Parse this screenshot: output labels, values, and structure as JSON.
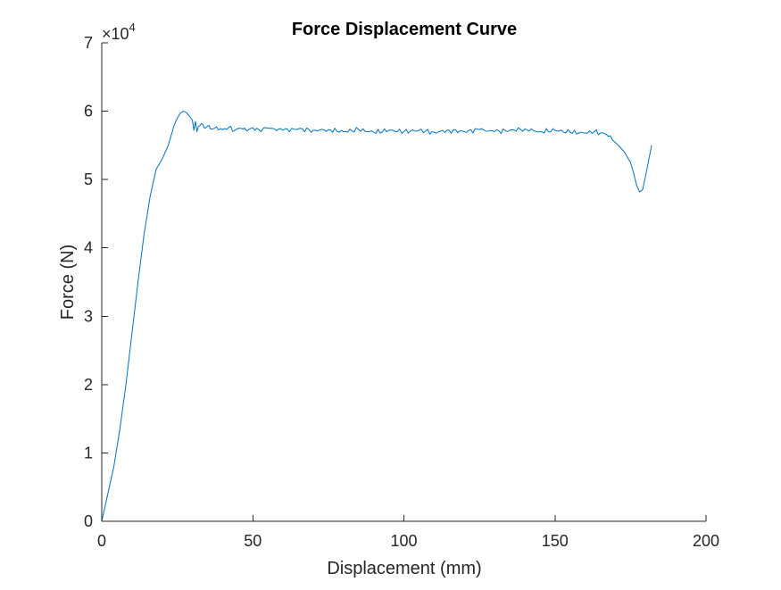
{
  "chart_data": {
    "type": "line",
    "title": "Force Displacement Curve",
    "xlabel": "Displacement (mm)",
    "ylabel": "Force (N)",
    "xlim": [
      0,
      200
    ],
    "ylim": [
      0,
      70000
    ],
    "xticks": [
      0,
      50,
      100,
      150,
      200
    ],
    "xtick_labels": [
      "0",
      "50",
      "100",
      "150",
      "200"
    ],
    "yticks": [
      0,
      10000,
      20000,
      30000,
      40000,
      50000,
      60000,
      70000
    ],
    "ytick_labels": [
      "0",
      "1",
      "2",
      "3",
      "4",
      "5",
      "6",
      "7"
    ],
    "y_exponent_label": "×10",
    "y_exponent_power": "4",
    "grid": false,
    "series": [
      {
        "color": "#0072bd",
        "x": [
          0,
          2,
          4,
          6,
          8,
          10,
          12,
          14,
          16,
          18,
          20,
          21,
          22,
          23,
          24,
          25,
          26,
          27,
          28,
          29,
          30,
          30.5,
          31,
          31.5,
          32,
          33,
          34,
          35,
          36,
          38,
          40,
          42,
          44,
          46,
          48,
          50,
          52,
          55,
          60,
          65,
          70,
          75,
          80,
          85,
          90,
          95,
          100,
          105,
          110,
          115,
          120,
          125,
          130,
          135,
          140,
          145,
          150,
          155,
          160,
          163,
          165,
          167,
          169,
          171,
          173,
          175,
          176,
          177,
          178,
          179,
          180,
          181,
          182
        ],
        "y": [
          0,
          4000,
          8000,
          13500,
          20000,
          27500,
          35000,
          42000,
          47500,
          51500,
          53000,
          54000,
          55000,
          56500,
          58000,
          59000,
          59700,
          60000,
          59800,
          59300,
          58700,
          57200,
          58500,
          57000,
          57800,
          58200,
          57500,
          57800,
          57400,
          57700,
          57300,
          57600,
          57200,
          57500,
          57100,
          57600,
          57300,
          57500,
          57200,
          57400,
          57200,
          57300,
          57000,
          57300,
          56900,
          57200,
          57000,
          57200,
          56900,
          57200,
          57000,
          57300,
          57000,
          57200,
          57400,
          57000,
          57200,
          56900,
          56800,
          57000,
          56800,
          56600,
          55800,
          55000,
          54000,
          52500,
          51000,
          49200,
          48200,
          48500,
          50500,
          52800,
          55000
        ]
      }
    ]
  }
}
